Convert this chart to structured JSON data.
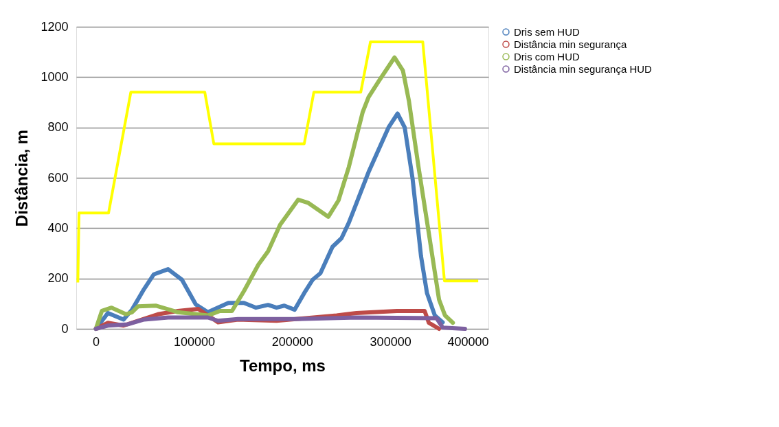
{
  "chart_data": {
    "type": "line",
    "xlabel": "Tempo, ms",
    "ylabel": "Distância, m",
    "xlim": [
      -20000,
      400000
    ],
    "xticks": [
      0,
      100000,
      200000,
      300000,
      400000
    ],
    "ylim": [
      0,
      1200
    ],
    "yticks": [
      0,
      200,
      400,
      600,
      800,
      1000,
      1200
    ],
    "grid": "y",
    "legend": "right",
    "marker": "none",
    "line_style": "solid",
    "series": [
      {
        "name": "Dris sem HUD",
        "color": "#4a7ebb",
        "x": [
          0,
          12300,
          28200,
          36800,
          49100,
          58900,
          73600,
          87700,
          101800,
          114100,
          135000,
          150900,
          163200,
          175500,
          184100,
          192000,
          202500,
          212300,
          220900,
          228800,
          241100,
          250300,
          257700,
          277900,
          298200,
          307400,
          314700,
          322700,
          331300,
          337400,
          345400,
          353400
        ],
        "values": [
          0,
          63,
          37,
          76,
          158,
          216,
          237,
          195,
          97,
          66,
          103,
          103,
          84,
          95,
          84,
          92,
          76,
          142,
          195,
          221,
          326,
          360,
          421,
          623,
          800,
          855,
          800,
          597,
          289,
          142,
          53,
          26
        ]
      },
      {
        "name": "Distância min segurança",
        "color": "#be4b48",
        "x": [
          0,
          12300,
          28200,
          42900,
          63200,
          83400,
          104300,
          114100,
          124500,
          144800,
          184100,
          245400,
          265600,
          306800,
          335000,
          339300,
          349700
        ],
        "values": [
          0,
          24,
          13,
          32,
          58,
          71,
          79,
          53,
          26,
          37,
          32,
          53,
          63,
          71,
          71,
          24,
          0
        ]
      },
      {
        "name": "Dris com HUD",
        "color": "#98b954",
        "x": [
          0,
          6100,
          16000,
          30700,
          36800,
          42900,
          61400,
          83400,
          114100,
          126400,
          138700,
          150900,
          165600,
          175500,
          187700,
          206100,
          216600,
          236800,
          247200,
          257700,
          271800,
          277900,
          288300,
          304300,
          312900,
          319000,
          328800,
          339300,
          349700,
          355800,
          363800
        ],
        "values": [
          0,
          71,
          84,
          58,
          66,
          89,
          92,
          66,
          53,
          71,
          71,
          150,
          255,
          308,
          413,
          513,
          500,
          445,
          510,
          642,
          860,
          921,
          984,
          1078,
          1026,
          905,
          642,
          379,
          116,
          53,
          24
        ]
      },
      {
        "name": "Distância min segurança HUD",
        "color": "#7d60a0",
        "x": [
          0,
          12300,
          32500,
          49100,
          73600,
          114100,
          124500,
          144800,
          204300,
          265600,
          347200,
          353400,
          376100
        ],
        "values": [
          0,
          13,
          18,
          37,
          45,
          45,
          32,
          39,
          39,
          45,
          42,
          5,
          0
        ]
      },
      {
        "color": "#ffff00",
        "x": [
          -18400,
          -17800,
          -17200,
          12900,
          35600,
          111000,
          120200,
          212300,
          222100,
          269900,
          279800,
          333100,
          355200,
          389600
        ],
        "values": [
          184,
          321,
          460,
          460,
          940,
          940,
          735,
          735,
          940,
          940,
          1140,
          1140,
          190,
          190
        ]
      }
    ]
  }
}
